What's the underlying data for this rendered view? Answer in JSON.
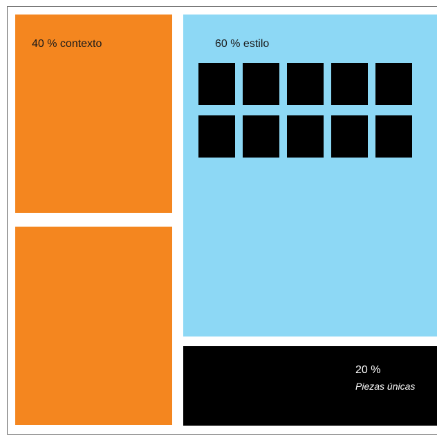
{
  "blocks": {
    "context": {
      "label": "40 % contexto",
      "color": "#f4861f"
    },
    "style": {
      "label": "60 % estilo",
      "color": "#8dd8f5"
    },
    "unique": {
      "percent": "20 %",
      "label": "Piezas únicas",
      "color": "#000000"
    }
  },
  "style_squares": {
    "rows": 2,
    "columns": 5,
    "color": "#000000"
  }
}
